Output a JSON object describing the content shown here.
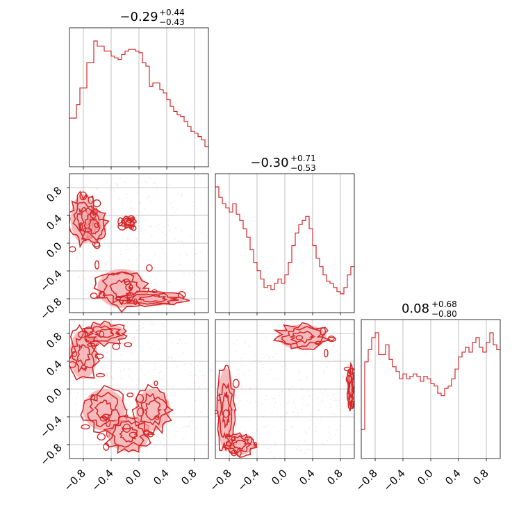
{
  "figure": {
    "titles": [
      {
        "main": "−0.29",
        "sup": "+0.44",
        "sub": "−0.43"
      },
      {
        "main": "−0.30",
        "sup": "+0.71",
        "sub": "−0.53"
      },
      {
        "main": "0.08",
        "sup": "+0.68",
        "sub": "−0.80"
      }
    ],
    "tick_labels": [
      "−0.8",
      "−0.4",
      "0.0",
      "0.4",
      "0.8"
    ],
    "tick_values": [
      -0.8,
      -0.4,
      0.0,
      0.4,
      0.8
    ],
    "color": "#d62728",
    "fill_color": "#f4a6a8"
  },
  "chart_data": [
    {
      "type": "histogram",
      "panel": "diag-0",
      "xlim": [
        -1,
        1
      ],
      "bins": 40,
      "counts": [
        29,
        29,
        37,
        47,
        47,
        62,
        62,
        75,
        72,
        72,
        69,
        69,
        66,
        65,
        64,
        67,
        69,
        70,
        70,
        69,
        68,
        62,
        60,
        48,
        50,
        50,
        46,
        44,
        40,
        36,
        33,
        31,
        30,
        27,
        24,
        21,
        20,
        18,
        16,
        12
      ]
    },
    {
      "type": "histogram",
      "panel": "diag-1",
      "xlim": [
        -1,
        1
      ],
      "bins": 40,
      "counts": [
        60,
        55,
        52,
        50,
        48,
        52,
        47,
        44,
        40,
        36,
        30,
        24,
        20,
        16,
        12,
        13,
        11,
        14,
        16,
        14,
        18,
        24,
        32,
        38,
        42,
        44,
        46,
        40,
        32,
        26,
        22,
        18,
        15,
        14,
        12,
        10,
        9,
        12,
        18,
        22
      ]
    },
    {
      "type": "histogram",
      "panel": "diag-2",
      "xlim": [
        -1,
        1
      ],
      "bins": 40,
      "counts": [
        12,
        40,
        45,
        50,
        52,
        43,
        43,
        47,
        41,
        38,
        36,
        33,
        35,
        33,
        34,
        35,
        34,
        32,
        34,
        33,
        31,
        30,
        27,
        26,
        29,
        30,
        33,
        37,
        42,
        44,
        46,
        44,
        48,
        50,
        46,
        44,
        48,
        52,
        47,
        45
      ]
    },
    {
      "type": "scatter-contour",
      "panel": "pair-1-0",
      "xlim": [
        -1,
        1
      ],
      "ylim": [
        -1,
        1
      ],
      "dense_regions": [
        {
          "center": [
            -0.8,
            0.35
          ],
          "radius": [
            0.18,
            0.35
          ]
        },
        {
          "center": [
            -0.65,
            0.25
          ],
          "radius": [
            0.18,
            0.25
          ]
        },
        {
          "center": [
            -0.15,
            0.3
          ],
          "radius": [
            0.1,
            0.08
          ]
        },
        {
          "center": [
            -0.25,
            -0.65
          ],
          "radius": [
            0.35,
            0.28
          ]
        },
        {
          "center": [
            0.2,
            -0.8
          ],
          "radius": [
            0.45,
            0.1
          ]
        }
      ]
    },
    {
      "type": "scatter-contour",
      "panel": "pair-2-0",
      "xlim": [
        -1,
        1
      ],
      "ylim": [
        -1,
        1
      ],
      "dense_regions": [
        {
          "center": [
            -0.8,
            0.5
          ],
          "radius": [
            0.2,
            0.35
          ]
        },
        {
          "center": [
            -0.5,
            0.8
          ],
          "radius": [
            0.3,
            0.15
          ]
        },
        {
          "center": [
            -0.5,
            -0.3
          ],
          "radius": [
            0.3,
            0.3
          ]
        },
        {
          "center": [
            -0.15,
            -0.65
          ],
          "radius": [
            0.3,
            0.25
          ]
        },
        {
          "center": [
            0.2,
            -0.3
          ],
          "radius": [
            0.25,
            0.3
          ]
        }
      ]
    },
    {
      "type": "scatter-contour",
      "panel": "pair-2-1",
      "xlim": [
        -1,
        1
      ],
      "ylim": [
        -1,
        1
      ],
      "dense_regions": [
        {
          "center": [
            0.25,
            0.75
          ],
          "radius": [
            0.35,
            0.18
          ]
        },
        {
          "center": [
            -0.85,
            -0.3
          ],
          "radius": [
            0.12,
            0.6
          ]
        },
        {
          "center": [
            -0.65,
            -0.8
          ],
          "radius": [
            0.2,
            0.15
          ]
        },
        {
          "center": [
            0.95,
            0.0
          ],
          "radius": [
            0.05,
            0.3
          ]
        }
      ]
    }
  ]
}
